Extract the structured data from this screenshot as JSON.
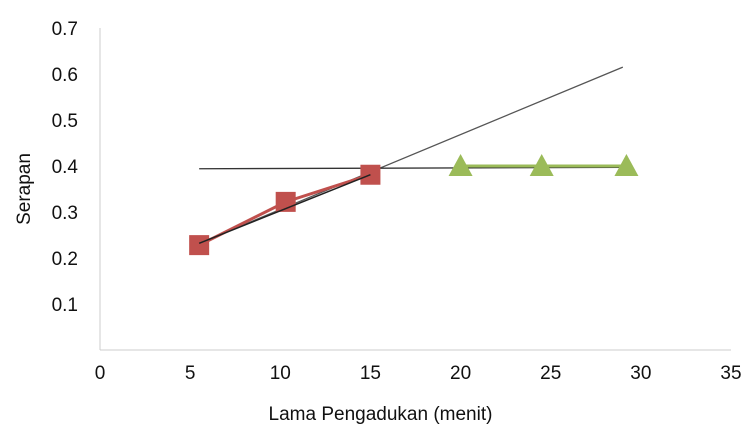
{
  "chart_data": {
    "type": "scatter",
    "title": "",
    "xlabel": "Lama Pengadukan (menit)",
    "ylabel": "Serapan",
    "xlim": [
      0,
      35
    ],
    "ylim": [
      0,
      0.7
    ],
    "x_ticks": [
      "0",
      "5",
      "10",
      "15",
      "20",
      "25",
      "30",
      "35"
    ],
    "y_ticks": [
      "0.1",
      "0.2",
      "0.3",
      "0.4",
      "0.5",
      "0.6",
      "0.7"
    ],
    "grid": false,
    "series": [
      {
        "marker": "square",
        "color": "#c0504d",
        "connect": true,
        "points": [
          {
            "x": 5.5,
            "y": 0.228
          },
          {
            "x": 10.3,
            "y": 0.322
          },
          {
            "x": 15,
            "y": 0.381
          }
        ]
      },
      {
        "marker": "triangle",
        "color": "#9bbb59",
        "connect": true,
        "points": [
          {
            "x": 20,
            "y": 0.4
          },
          {
            "x": 24.5,
            "y": 0.4
          },
          {
            "x": 29.2,
            "y": 0.4
          }
        ]
      }
    ],
    "trendlines": [
      {
        "color": "#555555",
        "x0": 5.5,
        "y0": 0.232,
        "x1": 29,
        "y1": 0.615
      },
      {
        "color": "#333333",
        "x0": 5.5,
        "y0": 0.394,
        "x1": 29.2,
        "y1": 0.397
      }
    ]
  }
}
